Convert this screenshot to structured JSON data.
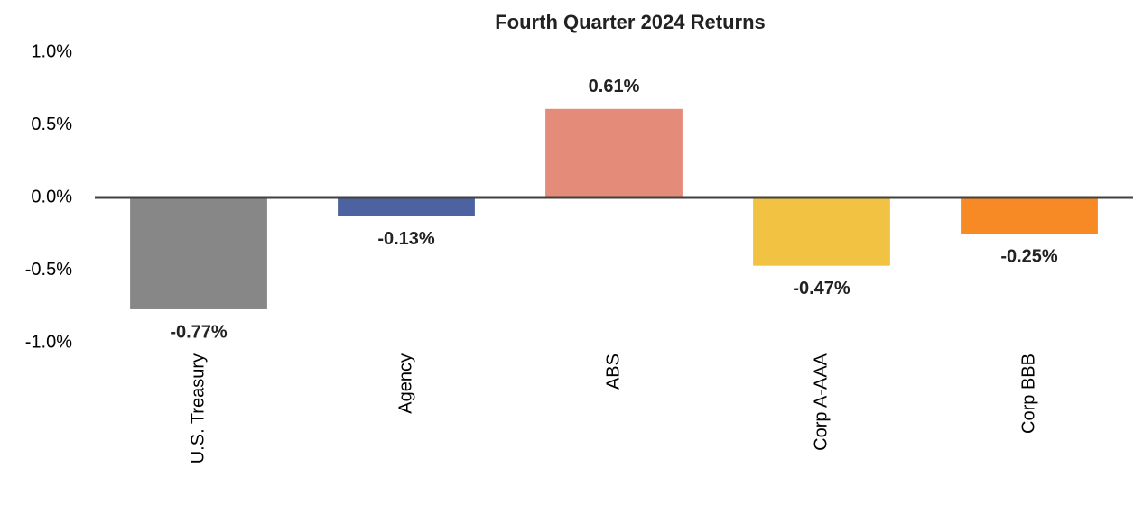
{
  "chart_data": {
    "type": "bar",
    "title": "Fourth Quarter 2024 Returns",
    "categories": [
      "U.S. Treasury",
      "Agency",
      "ABS",
      "Corp A-AAA",
      "Corp BBB"
    ],
    "values": [
      -0.77,
      -0.13,
      0.61,
      -0.47,
      -0.25
    ],
    "value_labels": [
      "-0.77%",
      "-0.13%",
      "0.61%",
      "-0.47%",
      "-0.25%"
    ],
    "colors": [
      "#878787",
      "#4d62a0",
      "#e58b79",
      "#f2c343",
      "#f88a25"
    ],
    "ylim": [
      -1.0,
      1.0
    ],
    "yticks": [
      {
        "value": -1.0,
        "label": "-1.0%"
      },
      {
        "value": -0.5,
        "label": "-0.5%"
      },
      {
        "value": 0,
        "label": "0.0%"
      },
      {
        "value": 0.5,
        "label": "0.5%"
      },
      {
        "value": 1.0,
        "label": "1.0%"
      }
    ],
    "grid": false
  }
}
